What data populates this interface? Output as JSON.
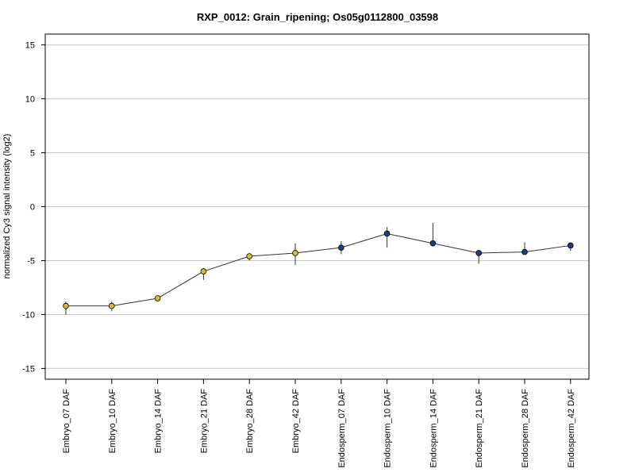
{
  "chart_data": {
    "type": "line",
    "title": "RXP_0012: Grain_ripening; Os05g0112800_03598",
    "ylabel": "normalized Cy3 signal intensity (log2)",
    "xlabel": "",
    "ylim": [
      -16,
      16
    ],
    "yticks": [
      -15,
      -10,
      -5,
      0,
      5,
      10,
      15
    ],
    "grid": true,
    "categories": [
      "Embryo_07 DAF",
      "Embryo_10 DAF",
      "Embryo_14 DAF",
      "Embryo_21 DAF",
      "Embryo_28 DAF",
      "Embryo_42 DAF",
      "Endosperm_07 DAF",
      "Endosperm_10 DAF",
      "Endosperm_14 DAF",
      "Endosperm_21 DAF",
      "Endosperm_28 DAF",
      "Endosperm_42 DAF"
    ],
    "values": [
      -9.2,
      -9.2,
      -8.5,
      -6.0,
      -4.6,
      -4.3,
      -3.8,
      -2.5,
      -3.4,
      -4.3,
      -4.2,
      -3.6
    ],
    "error_low": [
      -10.0,
      -9.7,
      -8.6,
      -6.8,
      -5.0,
      -5.4,
      -4.4,
      -3.8,
      -3.6,
      -5.3,
      -4.4,
      -4.1
    ],
    "error_high": [
      -8.8,
      -8.8,
      -8.4,
      -5.7,
      -4.4,
      -3.4,
      -3.2,
      -1.9,
      -1.5,
      -4.1,
      -3.3,
      -3.4
    ],
    "point_colors": [
      "#d4c12a",
      "#d4c12a",
      "#d4c12a",
      "#d4c12a",
      "#d4c12a",
      "#d4c12a",
      "#1e3a8a",
      "#1e3a8a",
      "#1e3a8a",
      "#1e3a8a",
      "#1e3a8a",
      "#1e3a8a"
    ],
    "line_color": "#333333",
    "grid_color": "#c8c8c8"
  }
}
